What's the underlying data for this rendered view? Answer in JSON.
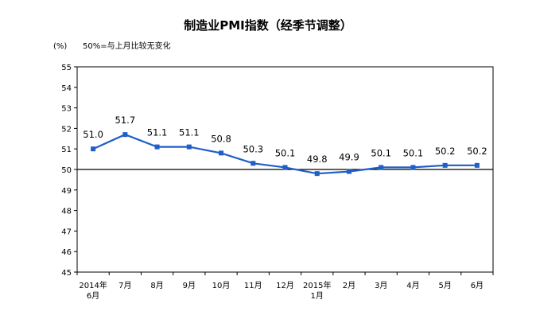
{
  "chart_data": {
    "type": "line",
    "title": "制造业PMI指数（经季节调整）",
    "unit": "(%)",
    "note": "50%=与上月比较无变化",
    "categories": [
      [
        "2014年",
        "6月"
      ],
      [
        "7月"
      ],
      [
        "8月"
      ],
      [
        "9月"
      ],
      [
        "10月"
      ],
      [
        "11月"
      ],
      [
        "12月"
      ],
      [
        "2015年",
        "1月"
      ],
      [
        "2月"
      ],
      [
        "3月"
      ],
      [
        "4月"
      ],
      [
        "5月"
      ],
      [
        "6月"
      ]
    ],
    "series": [
      {
        "values": [
          51.0,
          51.7,
          51.1,
          51.1,
          50.8,
          50.3,
          50.1,
          49.8,
          49.9,
          50.1,
          50.1,
          50.2,
          50.2
        ],
        "labels": [
          "51.0",
          "51.7",
          "51.1",
          "51.1",
          "50.8",
          "50.3",
          "50.1",
          "49.8",
          "49.9",
          "50.1",
          "50.1",
          "50.2",
          "50.2"
        ],
        "color": "#1f5fc8"
      }
    ],
    "yticks": [
      45,
      46,
      47,
      48,
      49,
      50,
      51,
      52,
      53,
      54,
      55
    ],
    "ylim": [
      45,
      55
    ],
    "reference_line": 50,
    "grid": false,
    "legend": "none"
  }
}
